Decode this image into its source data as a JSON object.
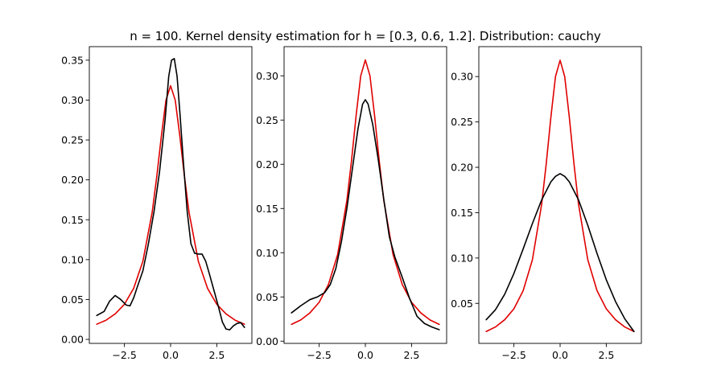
{
  "figure": {
    "title": "n = 100. Kernel density estimation for h = [0.3, 0.6, 1.2]. Distribution: cauchy"
  },
  "colors": {
    "true_density": "#e00000",
    "kde": "#000000",
    "axes": "#000000",
    "background": "#ffffff"
  },
  "chart_data": [
    {
      "type": "line",
      "xlim": [
        -4.4,
        4.4
      ],
      "ylim": [
        -0.005,
        0.367
      ],
      "xticks": [
        -2.5,
        0.0,
        2.5
      ],
      "xtick_labels": [
        "−2.5",
        "0.0",
        "2.5"
      ],
      "yticks": [
        0.0,
        0.05,
        0.1,
        0.15,
        0.2,
        0.25,
        0.3,
        0.35
      ],
      "ytick_labels": [
        "0.00",
        "0.05",
        "0.10",
        "0.15",
        "0.20",
        "0.25",
        "0.30",
        "0.35"
      ],
      "grid": false,
      "series": [
        {
          "role": "true_density",
          "x": [
            -4,
            -3.5,
            -3,
            -2.5,
            -2,
            -1.5,
            -1,
            -0.75,
            -0.5,
            -0.25,
            0,
            0.25,
            0.5,
            0.75,
            1,
            1.5,
            2,
            2.5,
            3,
            3.5,
            4
          ],
          "y": [
            0.019,
            0.024,
            0.032,
            0.044,
            0.064,
            0.098,
            0.159,
            0.204,
            0.255,
            0.3,
            0.318,
            0.3,
            0.255,
            0.204,
            0.159,
            0.098,
            0.064,
            0.044,
            0.032,
            0.024,
            0.019
          ]
        },
        {
          "role": "kde",
          "x": [
            -4,
            -3.6,
            -3.3,
            -3.0,
            -2.7,
            -2.4,
            -2.2,
            -2.0,
            -1.8,
            -1.5,
            -1.2,
            -0.9,
            -0.6,
            -0.3,
            -0.1,
            0.05,
            0.2,
            0.35,
            0.5,
            0.7,
            0.9,
            1.1,
            1.3,
            1.5,
            1.7,
            1.9,
            2.1,
            2.4,
            2.6,
            2.8,
            3.0,
            3.2,
            3.4,
            3.6,
            3.8,
            4.0
          ],
          "y": [
            0.03,
            0.035,
            0.048,
            0.055,
            0.05,
            0.043,
            0.042,
            0.052,
            0.066,
            0.086,
            0.12,
            0.16,
            0.21,
            0.275,
            0.33,
            0.35,
            0.352,
            0.33,
            0.285,
            0.22,
            0.16,
            0.12,
            0.108,
            0.107,
            0.107,
            0.098,
            0.082,
            0.057,
            0.04,
            0.022,
            0.013,
            0.012,
            0.017,
            0.02,
            0.021,
            0.015
          ]
        }
      ]
    },
    {
      "type": "line",
      "xlim": [
        -4.4,
        4.4
      ],
      "ylim": [
        -0.0025,
        0.333
      ],
      "xticks": [
        -2.5,
        0.0,
        2.5
      ],
      "xtick_labels": [
        "−2.5",
        "0.0",
        "2.5"
      ],
      "yticks": [
        0.0,
        0.05,
        0.1,
        0.15,
        0.2,
        0.25,
        0.3
      ],
      "ytick_labels": [
        "0.00",
        "0.05",
        "0.10",
        "0.15",
        "0.20",
        "0.25",
        "0.30"
      ],
      "grid": false,
      "series": [
        {
          "role": "true_density",
          "x": [
            -4,
            -3.5,
            -3,
            -2.5,
            -2,
            -1.5,
            -1,
            -0.75,
            -0.5,
            -0.25,
            0,
            0.25,
            0.5,
            0.75,
            1,
            1.5,
            2,
            2.5,
            3,
            3.5,
            4
          ],
          "y": [
            0.019,
            0.024,
            0.032,
            0.044,
            0.064,
            0.098,
            0.159,
            0.204,
            0.255,
            0.3,
            0.318,
            0.3,
            0.255,
            0.204,
            0.159,
            0.098,
            0.064,
            0.044,
            0.032,
            0.024,
            0.019
          ]
        },
        {
          "role": "kde",
          "x": [
            -4,
            -3.5,
            -3.0,
            -2.6,
            -2.2,
            -1.9,
            -1.6,
            -1.3,
            -1.0,
            -0.7,
            -0.4,
            -0.15,
            0,
            0.15,
            0.4,
            0.7,
            1.0,
            1.3,
            1.6,
            2.0,
            2.4,
            2.8,
            3.2,
            3.6,
            4.0
          ],
          "y": [
            0.032,
            0.04,
            0.047,
            0.05,
            0.055,
            0.064,
            0.082,
            0.112,
            0.15,
            0.195,
            0.24,
            0.268,
            0.273,
            0.268,
            0.245,
            0.205,
            0.16,
            0.118,
            0.095,
            0.072,
            0.048,
            0.028,
            0.02,
            0.016,
            0.013
          ]
        }
      ]
    },
    {
      "type": "line",
      "xlim": [
        -4.4,
        4.4
      ],
      "ylim": [
        0.0059,
        0.333
      ],
      "xticks": [
        -2.5,
        0.0,
        2.5
      ],
      "xtick_labels": [
        "−2.5",
        "0.0",
        "2.5"
      ],
      "yticks": [
        0.05,
        0.1,
        0.15,
        0.2,
        0.25,
        0.3
      ],
      "ytick_labels": [
        "0.05",
        "0.10",
        "0.15",
        "0.20",
        "0.25",
        "0.30"
      ],
      "grid": false,
      "series": [
        {
          "role": "true_density",
          "x": [
            -4,
            -3.5,
            -3,
            -2.5,
            -2,
            -1.5,
            -1,
            -0.75,
            -0.5,
            -0.25,
            0,
            0.25,
            0.5,
            0.75,
            1,
            1.5,
            2,
            2.5,
            3,
            3.5,
            4
          ],
          "y": [
            0.019,
            0.024,
            0.032,
            0.044,
            0.064,
            0.098,
            0.159,
            0.204,
            0.255,
            0.3,
            0.318,
            0.3,
            0.255,
            0.204,
            0.159,
            0.098,
            0.064,
            0.044,
            0.032,
            0.024,
            0.019
          ]
        },
        {
          "role": "kde",
          "x": [
            -4,
            -3.5,
            -3.0,
            -2.5,
            -2.0,
            -1.5,
            -1.0,
            -0.5,
            -0.25,
            0,
            0.25,
            0.5,
            1.0,
            1.5,
            2.0,
            2.5,
            3.0,
            3.5,
            4.0
          ],
          "y": [
            0.032,
            0.043,
            0.06,
            0.083,
            0.11,
            0.138,
            0.164,
            0.184,
            0.19,
            0.193,
            0.19,
            0.184,
            0.164,
            0.136,
            0.105,
            0.076,
            0.052,
            0.033,
            0.019
          ]
        }
      ]
    }
  ]
}
